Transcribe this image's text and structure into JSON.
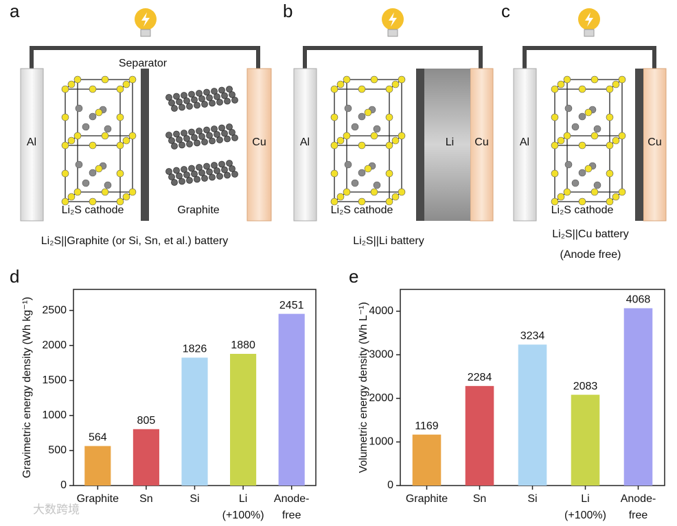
{
  "panels": [
    {
      "letter": "a",
      "separator": "Separator",
      "left": "Al",
      "right": "Cu",
      "cathode": "Li₂S cathode",
      "anode": "Graphite",
      "caption": [
        "Li₂S||Graphite (or Si, Sn, et al.) battery"
      ]
    },
    {
      "letter": "b",
      "left": "Al",
      "right": "Cu",
      "middle": "Li",
      "cathode": "Li₂S cathode",
      "caption": [
        "Li₂S||Li battery"
      ]
    },
    {
      "letter": "c",
      "left": "Al",
      "right": "Cu",
      "cathode": "Li₂S cathode",
      "caption": [
        "Li₂S||Cu battery",
        "(Anode free)"
      ]
    }
  ],
  "watermark": "大数跨境",
  "chart_data": [
    {
      "type": "bar",
      "panel": "d",
      "y_label": "Gravimetric energy density (Wh kg⁻¹)",
      "categories": [
        "Graphite",
        "Sn",
        "Si",
        "Li\n(+100%)",
        "Anode-\nfree"
      ],
      "values": [
        564,
        805,
        1826,
        1880,
        2451
      ],
      "colors": [
        "#e9a343",
        "#d9555b",
        "#acd6f3",
        "#c9d54b",
        "#a3a2f2"
      ],
      "ylim": [
        0,
        2800
      ],
      "yticks": [
        0,
        500,
        1000,
        1500,
        2000,
        2500
      ]
    },
    {
      "type": "bar",
      "panel": "e",
      "y_label": "Volumetric energy density (Wh L⁻¹)",
      "categories": [
        "Graphite",
        "Sn",
        "Si",
        "Li\n(+100%)",
        "Anode-\nfree"
      ],
      "values": [
        1169,
        2284,
        3234,
        2083,
        4068
      ],
      "colors": [
        "#e9a343",
        "#d9555b",
        "#acd6f3",
        "#c9d54b",
        "#a3a2f2"
      ],
      "ylim": [
        0,
        4500
      ],
      "yticks": [
        0,
        1000,
        2000,
        3000,
        4000
      ]
    }
  ]
}
